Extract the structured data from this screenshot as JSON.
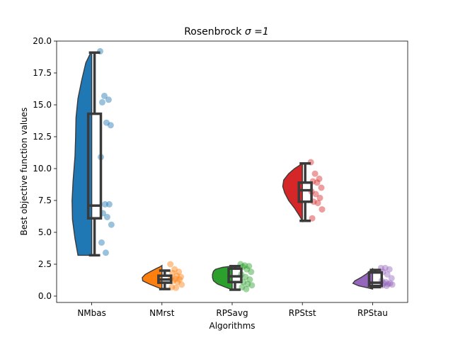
{
  "chart_data": {
    "type": "raincloud",
    "title": "Rosenbrock",
    "title_math": "σ =1",
    "xlabel": "Algorithms",
    "ylabel": "Best objective function values",
    "ylim": [
      -0.5,
      20.0
    ],
    "yticks": [
      0.0,
      2.5,
      5.0,
      7.5,
      10.0,
      12.5,
      15.0,
      17.5,
      20.0
    ],
    "ytick_labels": [
      "0.0",
      "2.5",
      "5.0",
      "7.5",
      "10.0",
      "12.5",
      "15.0",
      "17.5",
      "20.0"
    ],
    "grid": false,
    "categories": [
      "NMbas",
      "NMrst",
      "RPSavg",
      "RPStst",
      "RPStau"
    ],
    "colors": [
      "#1f77b4",
      "#ff7f0e",
      "#2ca02c",
      "#d62728",
      "#9467bd"
    ],
    "series": [
      {
        "boxplot": {
          "whisker_low": 3.2,
          "q1": 6.1,
          "median": 7.1,
          "q3": 14.3,
          "whisker_high": 19.1
        },
        "points": [
          19.2,
          15.7,
          15.4,
          15.2,
          13.6,
          13.4,
          10.9,
          7.2,
          7.2,
          6.5,
          6.2,
          5.6,
          4.2,
          3.4
        ],
        "density": [
          [
            3.2,
            0.7
          ],
          [
            4.5,
            0.85
          ],
          [
            6.0,
            0.98
          ],
          [
            7.5,
            1.0
          ],
          [
            9.0,
            0.95
          ],
          [
            11.0,
            0.85
          ],
          [
            12.5,
            0.82
          ],
          [
            14.0,
            0.8
          ],
          [
            15.5,
            0.7
          ],
          [
            17.0,
            0.5
          ],
          [
            18.3,
            0.3
          ],
          [
            19.0,
            0.08
          ],
          [
            19.1,
            0.0
          ]
        ]
      },
      {
        "boxplot": {
          "whisker_low": 0.55,
          "q1": 1.05,
          "median": 1.3,
          "q3": 1.6,
          "whisker_high": 2.0
        },
        "points": [
          2.5,
          2.1,
          1.9,
          1.8,
          1.6,
          1.5,
          1.4,
          1.35,
          1.3,
          1.2,
          1.1,
          0.9,
          0.7,
          0.65
        ],
        "density": [
          [
            0.55,
            0.0
          ],
          [
            0.7,
            0.25
          ],
          [
            0.95,
            0.65
          ],
          [
            1.2,
            0.98
          ],
          [
            1.45,
            1.0
          ],
          [
            1.7,
            0.85
          ],
          [
            1.95,
            0.55
          ],
          [
            2.15,
            0.3
          ],
          [
            2.3,
            0.1
          ],
          [
            2.4,
            0.0
          ]
        ]
      },
      {
        "boxplot": {
          "whisker_low": 0.5,
          "q1": 1.1,
          "median": 1.55,
          "q3": 2.15,
          "whisker_high": 2.35
        },
        "points": [
          2.5,
          2.4,
          2.35,
          2.3,
          2.1,
          1.9,
          1.7,
          1.5,
          1.3,
          1.1,
          0.95,
          0.85,
          0.7,
          0.55
        ],
        "density": [
          [
            0.5,
            0.0
          ],
          [
            0.7,
            0.35
          ],
          [
            0.95,
            0.75
          ],
          [
            1.2,
            0.95
          ],
          [
            1.45,
            1.0
          ],
          [
            1.7,
            1.0
          ],
          [
            1.95,
            0.95
          ],
          [
            2.1,
            0.85
          ],
          [
            2.25,
            0.5
          ],
          [
            2.35,
            0.0
          ]
        ]
      },
      {
        "boxplot": {
          "whisker_low": 5.9,
          "q1": 7.4,
          "median": 8.3,
          "q3": 8.9,
          "whisker_high": 10.4
        },
        "points": [
          10.5,
          9.6,
          9.2,
          9.0,
          8.9,
          8.5,
          8.2,
          8.0,
          7.7,
          7.4,
          7.3,
          6.8,
          6.1
        ],
        "density": [
          [
            5.9,
            0.0
          ],
          [
            6.3,
            0.15
          ],
          [
            6.9,
            0.4
          ],
          [
            7.5,
            0.7
          ],
          [
            8.1,
            0.9
          ],
          [
            8.6,
            1.0
          ],
          [
            9.1,
            0.95
          ],
          [
            9.6,
            0.7
          ],
          [
            10.0,
            0.4
          ],
          [
            10.4,
            0.0
          ]
        ]
      },
      {
        "boxplot": {
          "whisker_low": 0.7,
          "q1": 0.8,
          "median": 1.05,
          "q3": 1.85,
          "whisker_high": 2.05
        },
        "points": [
          2.2,
          2.2,
          2.1,
          1.9,
          1.7,
          1.4,
          1.2,
          1.1,
          1.0,
          1.0,
          0.95,
          0.9,
          0.85,
          0.8
        ],
        "density": [
          [
            0.55,
            0.0
          ],
          [
            0.65,
            0.25
          ],
          [
            0.8,
            0.7
          ],
          [
            1.0,
            1.0
          ],
          [
            1.2,
            0.9
          ],
          [
            1.45,
            0.6
          ],
          [
            1.75,
            0.3
          ],
          [
            2.0,
            0.12
          ],
          [
            2.15,
            0.0
          ]
        ]
      }
    ]
  }
}
